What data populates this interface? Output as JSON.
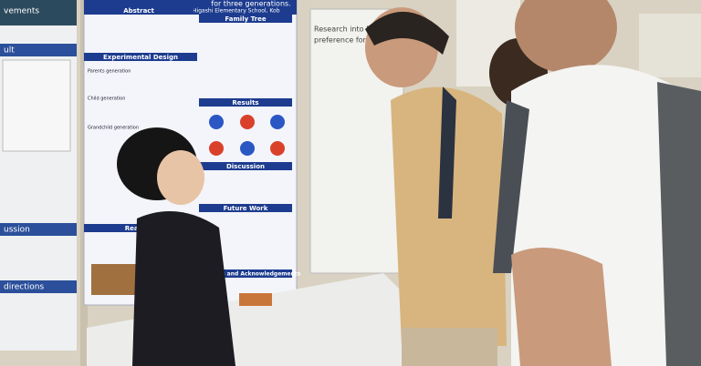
{
  "main_poster": {
    "title": "for three generations.",
    "author": "Nagai, Ibuki Higashi Elementary School, Kob",
    "sections": [
      "Abstract",
      "Family Tree",
      "Experimental Design",
      "Results",
      "Discussion",
      "Future Work",
      "Reaction",
      "References and Acknowledgements"
    ],
    "generations": [
      "Parents generation",
      "Child generation",
      "Grandchild generation"
    ]
  },
  "left_poster": {
    "headings": [
      "vements",
      "ult",
      "ussion",
      "directions"
    ]
  },
  "right_poster": {
    "title_lines": [
      "Research into Phoebis",
      "preference for the"
    ]
  }
}
